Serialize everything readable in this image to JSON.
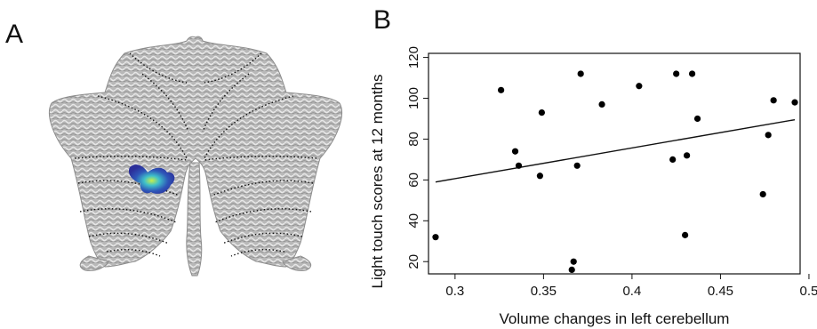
{
  "figure": {
    "panel_a_letter": "A",
    "panel_b_letter": "B"
  },
  "colors": {
    "flatmap_gray": "#b4b4b4",
    "flatmap_texture": "#e6e6e6",
    "cluster_blue": "#2d3fa8",
    "cluster_cyan": "#3fb9c9",
    "cluster_green": "#a9e04a",
    "markers": "#000000"
  },
  "chart_data": {
    "type": "scatter",
    "title": "",
    "xlabel": "Volume changes in left cerebellum",
    "ylabel": "Light touch scores at 12 months",
    "xlim": [
      0.285,
      0.495
    ],
    "ylim": [
      14,
      122
    ],
    "xticks": [
      0.3,
      0.35,
      0.4,
      0.45,
      0.5
    ],
    "xtick_labels": [
      "0.3",
      "0.35",
      "0.4",
      "0.45",
      "0.5"
    ],
    "yticks": [
      20,
      40,
      60,
      80,
      100,
      120
    ],
    "ytick_labels": [
      "20",
      "40",
      "60",
      "80",
      "100",
      "120"
    ],
    "grid": false,
    "legend": "none",
    "points": [
      {
        "x": 0.289,
        "y": 32
      },
      {
        "x": 0.326,
        "y": 104
      },
      {
        "x": 0.334,
        "y": 74
      },
      {
        "x": 0.336,
        "y": 67
      },
      {
        "x": 0.348,
        "y": 62
      },
      {
        "x": 0.349,
        "y": 93
      },
      {
        "x": 0.366,
        "y": 16
      },
      {
        "x": 0.367,
        "y": 20
      },
      {
        "x": 0.369,
        "y": 67
      },
      {
        "x": 0.371,
        "y": 112
      },
      {
        "x": 0.383,
        "y": 97
      },
      {
        "x": 0.404,
        "y": 106
      },
      {
        "x": 0.423,
        "y": 70
      },
      {
        "x": 0.425,
        "y": 112
      },
      {
        "x": 0.43,
        "y": 33
      },
      {
        "x": 0.431,
        "y": 72
      },
      {
        "x": 0.434,
        "y": 112
      },
      {
        "x": 0.437,
        "y": 90
      },
      {
        "x": 0.474,
        "y": 53
      },
      {
        "x": 0.477,
        "y": 82
      },
      {
        "x": 0.48,
        "y": 99
      },
      {
        "x": 0.492,
        "y": 98
      }
    ],
    "fit_line": {
      "x": [
        0.289,
        0.492
      ],
      "y": [
        59,
        89.5
      ]
    }
  }
}
